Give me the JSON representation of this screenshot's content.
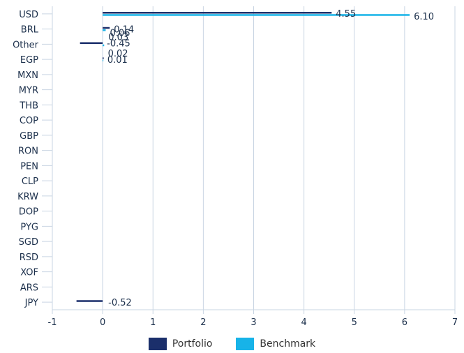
{
  "chart_data": {
    "type": "bar",
    "orientation": "horizontal",
    "categories": [
      "USD",
      "BRL",
      "Other",
      "EGP",
      "MXN",
      "MYR",
      "THB",
      "COP",
      "GBP",
      "RON",
      "PEN",
      "CLP",
      "KRW",
      "DOP",
      "PYG",
      "SGD",
      "RSD",
      "XOF",
      "ARS",
      "JPY"
    ],
    "series": [
      {
        "name": "Portfolio",
        "color": "#1b2f6b",
        "values": [
          4.55,
          0.14,
          -0.45,
          0.02,
          null,
          null,
          null,
          null,
          null,
          null,
          null,
          null,
          null,
          null,
          null,
          null,
          null,
          null,
          null,
          -0.52
        ],
        "labels": [
          "4.55",
          "0.14",
          "-0.45",
          "0.02",
          "",
          "",
          "",
          "",
          "",
          "",
          "",
          "",
          "",
          "",
          "",
          "",
          "",
          "",
          "",
          "-0.52"
        ]
      },
      {
        "name": "Benchmark",
        "color": "#17b3e8",
        "values": [
          6.1,
          0.06,
          0.03,
          0.01,
          null,
          null,
          null,
          null,
          null,
          null,
          null,
          null,
          null,
          null,
          null,
          null,
          null,
          null,
          null,
          null
        ],
        "labels": [
          "6.10",
          "0.06",
          "0.03",
          "0.01",
          "",
          "",
          "",
          "",
          "",
          "",
          "",
          "",
          "",
          "",
          "",
          "",
          "",
          "",
          "",
          ""
        ]
      }
    ],
    "xlim": [
      -1,
      7
    ],
    "xticks": [
      "-1",
      "0",
      "1",
      "2",
      "3",
      "4",
      "5",
      "6",
      "7"
    ],
    "grid": "vertical",
    "legend": "bottom-center",
    "title": "",
    "xlabel": "",
    "ylabel": ""
  },
  "legend": {
    "portfolio": "Portfolio",
    "benchmark": "Benchmark"
  }
}
